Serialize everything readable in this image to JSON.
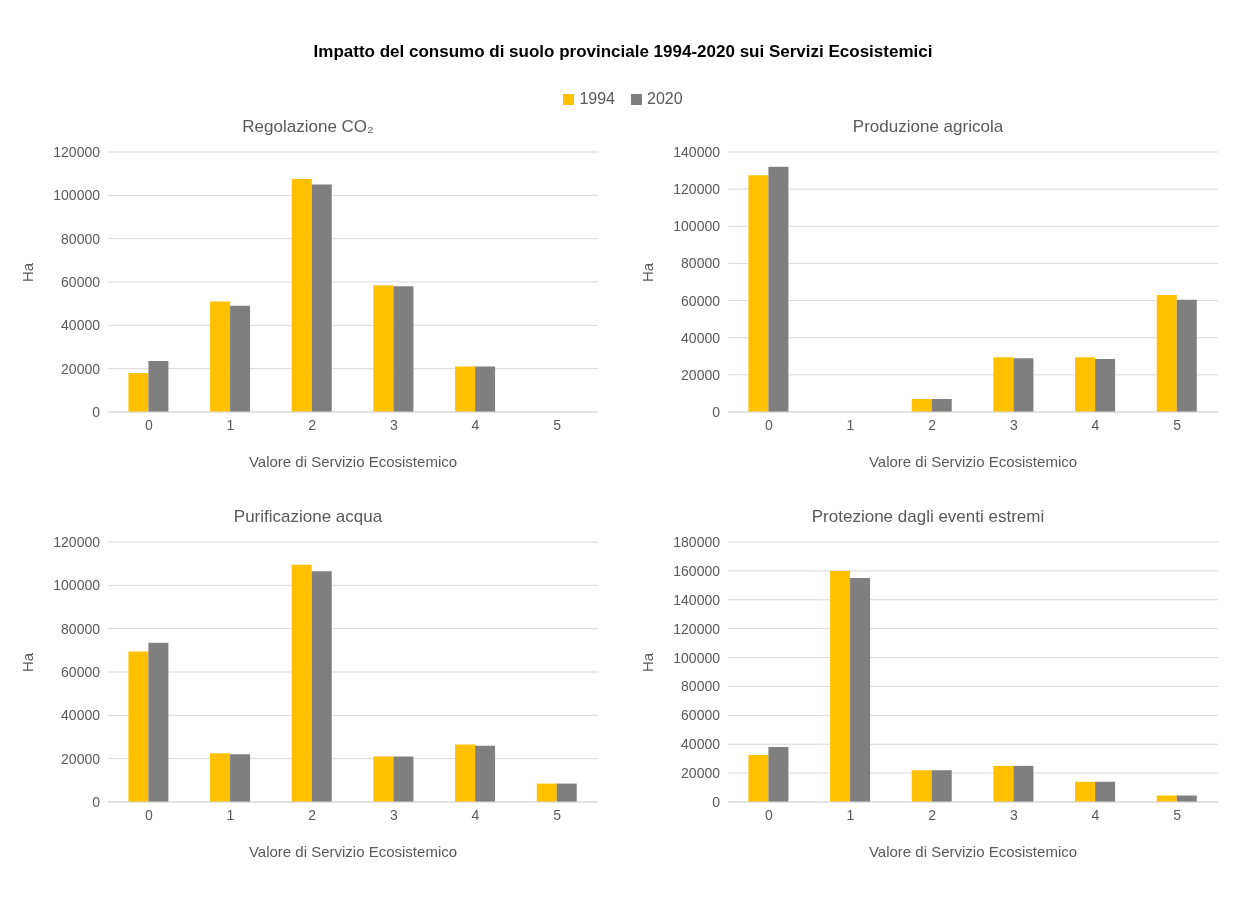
{
  "chart_data": [
    {
      "type": "bar",
      "title": "Regolazione CO₂",
      "annotations": [
        "Impatto del consumo di suolo provinciale 1994-2020 sui Servizi Ecosistemici"
      ],
      "xlabel": "Valore di Servizio Ecosistemico",
      "ylabel": "Ha",
      "categories": [
        "0",
        "1",
        "2",
        "3",
        "4",
        "5"
      ],
      "ylim": [
        0,
        120000
      ],
      "yticks": [
        0,
        20000,
        40000,
        60000,
        80000,
        100000,
        120000
      ],
      "grid": "y",
      "legend": "top",
      "series": [
        {
          "name": "1994",
          "color": "#ffc000",
          "values": [
            18000,
            51000,
            107500,
            58500,
            21000,
            null
          ]
        },
        {
          "name": "2020",
          "color": "#7f7f7f",
          "values": [
            23500,
            49000,
            105000,
            58000,
            21000,
            null
          ]
        }
      ]
    },
    {
      "type": "bar",
      "title": "Produzione agricola",
      "xlabel": "Valore di Servizio Ecosistemico",
      "ylabel": "Ha",
      "categories": [
        "0",
        "1",
        "2",
        "3",
        "4",
        "5"
      ],
      "ylim": [
        0,
        140000
      ],
      "yticks": [
        0,
        20000,
        40000,
        60000,
        80000,
        100000,
        120000,
        140000
      ],
      "grid": "y",
      "series": [
        {
          "name": "1994",
          "color": "#ffc000",
          "values": [
            127500,
            null,
            7000,
            29500,
            29500,
            63000
          ]
        },
        {
          "name": "2020",
          "color": "#7f7f7f",
          "values": [
            132000,
            null,
            7000,
            29000,
            28500,
            60500
          ]
        }
      ]
    },
    {
      "type": "bar",
      "title": "Purificazione acqua",
      "xlabel": "Valore di Servizio Ecosistemico",
      "ylabel": "Ha",
      "categories": [
        "0",
        "1",
        "2",
        "3",
        "4",
        "5"
      ],
      "ylim": [
        0,
        120000
      ],
      "yticks": [
        0,
        20000,
        40000,
        60000,
        80000,
        100000,
        120000
      ],
      "grid": "y",
      "series": [
        {
          "name": "1994",
          "color": "#ffc000",
          "values": [
            69500,
            22500,
            109500,
            21000,
            26500,
            8500
          ]
        },
        {
          "name": "2020",
          "color": "#7f7f7f",
          "values": [
            73500,
            22000,
            106500,
            21000,
            26000,
            8500
          ]
        }
      ]
    },
    {
      "type": "bar",
      "title": "Protezione dagli eventi estremi",
      "xlabel": "Valore di Servizio Ecosistemico",
      "ylabel": "Ha",
      "categories": [
        "0",
        "1",
        "2",
        "3",
        "4",
        "5"
      ],
      "ylim": [
        0,
        180000
      ],
      "yticks": [
        0,
        20000,
        40000,
        60000,
        80000,
        100000,
        120000,
        140000,
        160000,
        180000
      ],
      "grid": "y",
      "series": [
        {
          "name": "1994",
          "color": "#ffc000",
          "values": [
            32500,
            160000,
            22000,
            25000,
            14000,
            4500
          ]
        },
        {
          "name": "2020",
          "color": "#7f7f7f",
          "values": [
            38000,
            155000,
            22000,
            25000,
            14000,
            4500
          ]
        }
      ]
    }
  ]
}
